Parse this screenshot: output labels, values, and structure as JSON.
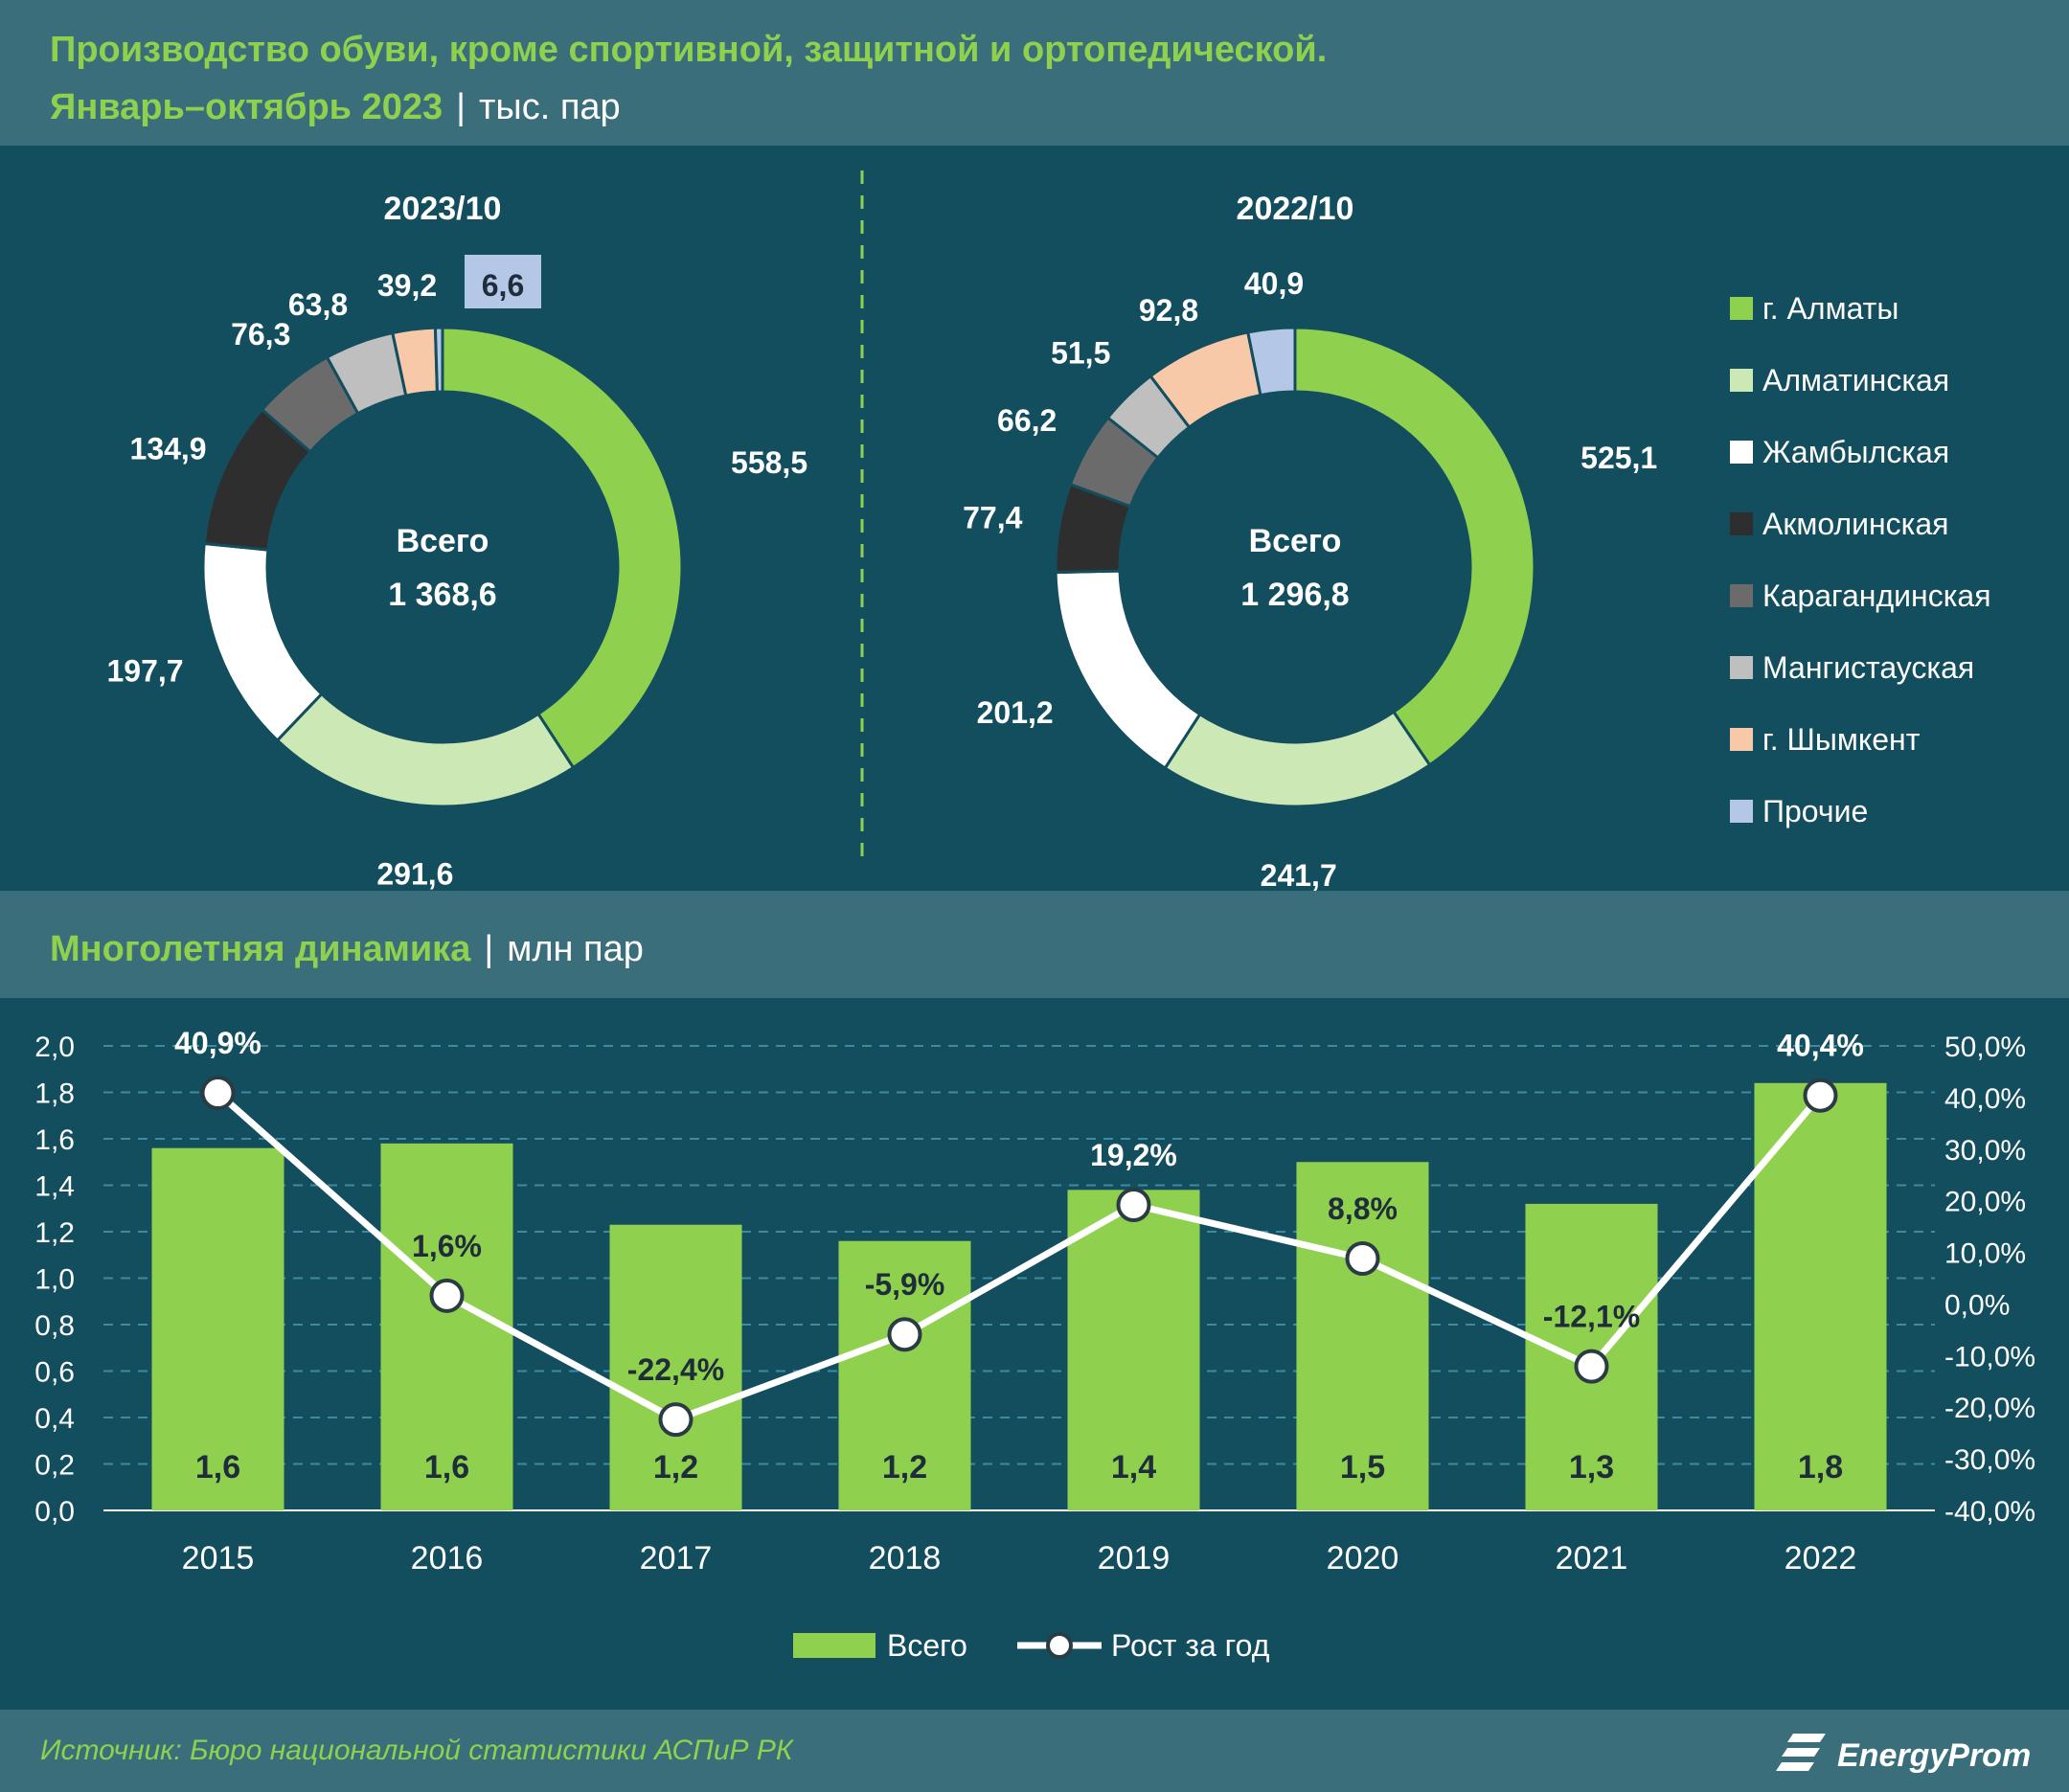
{
  "header": {
    "title_line1": "Производство обуви, кроме спортивной, защитной и ортопедической.",
    "title_line2": "Январь–октябрь 2023",
    "unit": "тыс. пар"
  },
  "colors": {
    "almaty": "#8fd14f",
    "almatinskaya": "#cbe8b5",
    "zhambyl": "#ffffff",
    "akmola": "#2e2e2e",
    "karaganda": "#6b6b6b",
    "mangistau": "#bfbfbf",
    "shymkent": "#f8c9a8",
    "other": "#b4c7e7",
    "background": "#134e5e",
    "band": "#3a6e7b"
  },
  "chart_data": [
    {
      "type": "pie",
      "variant": "donut",
      "title": "2023/10",
      "center_label": "Всего",
      "center_value": "1 368,6",
      "categories": [
        "г. Алматы",
        "Алматинская",
        "Жамбылская",
        "Акмолинская",
        "Карагандинская",
        "Мангистауская",
        "г. Шымкент",
        "Прочие"
      ],
      "values": [
        558.5,
        291.6,
        197.7,
        134.9,
        76.3,
        63.8,
        39.2,
        6.6
      ],
      "labels": [
        "558,5",
        "291,6",
        "197,7",
        "134,9",
        "76,3",
        "63,8",
        "39,2",
        "6,6"
      ]
    },
    {
      "type": "pie",
      "variant": "donut",
      "title": "2022/10",
      "center_label": "Всего",
      "center_value": "1 296,8",
      "categories": [
        "г. Алматы",
        "Алматинская",
        "Жамбылская",
        "Акмолинская",
        "Карагандинская",
        "Мангистауская",
        "г. Шымкент",
        "Прочие"
      ],
      "values": [
        525.1,
        241.7,
        201.2,
        77.4,
        66.2,
        51.5,
        92.8,
        40.9
      ],
      "labels": [
        "525,1",
        "241,7",
        "201,2",
        "77,4",
        "66,2",
        "51,5",
        "92,8",
        "40,9"
      ],
      "legend": [
        "г. Алматы",
        "Алматинская",
        "Жамбылская",
        "Акмолинская",
        "Карагандинская",
        "Мангистауская",
        "г. Шымкент",
        "Прочие"
      ],
      "legend_position": "right"
    },
    {
      "type": "bar",
      "title": "Многолетняя динамика",
      "unit": "млн пар",
      "categories": [
        "2015",
        "2016",
        "2017",
        "2018",
        "2019",
        "2020",
        "2021",
        "2022"
      ],
      "series": [
        {
          "name": "Всего",
          "type": "bar",
          "values": [
            1.56,
            1.58,
            1.23,
            1.16,
            1.38,
            1.5,
            1.32,
            1.84
          ],
          "labels": [
            "1,6",
            "1,6",
            "1,2",
            "1,2",
            "1,4",
            "1,5",
            "1,3",
            "1,8"
          ]
        },
        {
          "name": "Рост за год",
          "type": "line",
          "axis": "right",
          "values": [
            40.9,
            1.6,
            -22.4,
            -5.9,
            19.2,
            8.8,
            -12.1,
            40.4
          ],
          "labels": [
            "40,9%",
            "1,6%",
            "-22,4%",
            "-5,9%",
            "19,2%",
            "8,8%",
            "-12,1%",
            "40,4%"
          ]
        }
      ],
      "ylim": [
        0,
        2
      ],
      "y_ticks": [
        "0,0",
        "0,2",
        "0,4",
        "0,6",
        "0,8",
        "1,0",
        "1,2",
        "1,4",
        "1,6",
        "1,8",
        "2,0"
      ],
      "y2lim": [
        -40,
        50
      ],
      "y2_ticks": [
        "-40,0%",
        "-30,0%",
        "-20,0%",
        "-10,0%",
        "0,0%",
        "10,0%",
        "20,0%",
        "30,0%",
        "40,0%",
        "50,0%"
      ],
      "grid": true,
      "legend_position": "bottom"
    }
  ],
  "footer": {
    "source": "Источник: Бюро национальной статистики АСПиР РК",
    "logo_text": "EnergyProm"
  }
}
